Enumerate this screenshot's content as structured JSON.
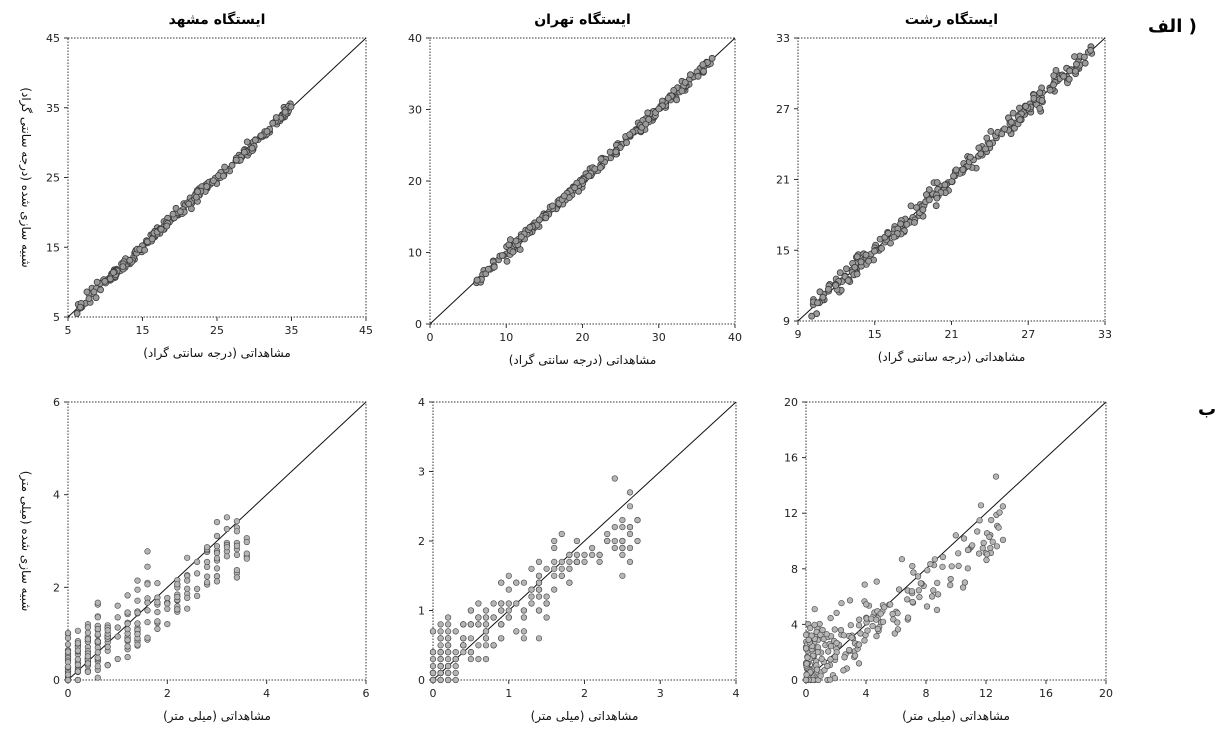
{
  "row_labels": {
    "a": "الف )",
    "b": "ب )"
  },
  "chart_data": [
    {
      "type": "scatter",
      "title": "ایستگاه مشهد",
      "xlabel": "مشاهداتی (درجه سانتی گراد)",
      "ylabel": "شبیه سازی شده (درجه سانتی گراد)",
      "xlim": [
        5,
        45
      ],
      "ylim": [
        5,
        45
      ],
      "xticks": [
        "5",
        "15",
        "25",
        "35",
        "45"
      ],
      "yticks": [
        "5",
        "15",
        "25",
        "35",
        "45"
      ],
      "reference_line": "1:1",
      "x_range_observed": [
        6,
        35
      ]
    },
    {
      "type": "scatter",
      "title": "ایستگاه تهران",
      "xlabel": "مشاهداتی (درجه سانتی گراد)",
      "ylabel": "",
      "xlim": [
        0,
        40
      ],
      "ylim": [
        0,
        40
      ],
      "xticks": [
        "0",
        "10",
        "20",
        "30",
        "40"
      ],
      "yticks": [
        "0",
        "10",
        "20",
        "30",
        "40"
      ],
      "reference_line": "1:1",
      "x_range_observed": [
        6,
        37
      ]
    },
    {
      "type": "scatter",
      "title": "ایستگاه رشت",
      "xlabel": "مشاهداتی (درجه سانتی گراد)",
      "ylabel": "",
      "xlim": [
        9,
        33
      ],
      "ylim": [
        9,
        33
      ],
      "xticks": [
        "9",
        "15",
        "21",
        "27",
        "33"
      ],
      "yticks": [
        "9",
        "15",
        "21",
        "27",
        "33"
      ],
      "reference_line": "1:1",
      "x_range_observed": [
        10,
        32
      ]
    },
    {
      "type": "scatter",
      "title": "",
      "xlabel": "مشاهداتی (میلی متر)",
      "ylabel": "شبیه سازی شده (میلی متر)",
      "xlim": [
        0,
        6
      ],
      "ylim": [
        0,
        6
      ],
      "xticks": [
        "0",
        "2",
        "4",
        "6"
      ],
      "yticks": [
        "0",
        "2",
        "4",
        "6"
      ],
      "reference_line": "1:1",
      "x_range_observed": [
        0,
        3.6
      ]
    },
    {
      "type": "scatter",
      "title": "",
      "xlabel": "مشاهداتی (میلی متر)",
      "ylabel": "",
      "xlim": [
        0,
        4
      ],
      "ylim": [
        0,
        4
      ],
      "xticks": [
        "0",
        "1",
        "2",
        "3",
        "4"
      ],
      "yticks": [
        "0",
        "1",
        "2",
        "3",
        "4"
      ],
      "reference_line": "1:1",
      "x_range_observed": [
        0,
        2.7
      ]
    },
    {
      "type": "scatter",
      "title": "",
      "xlabel": "مشاهداتی (میلی متر)",
      "ylabel": "",
      "xlim": [
        0,
        20
      ],
      "ylim": [
        0,
        20
      ],
      "xticks": [
        "0",
        "4",
        "8",
        "12",
        "16",
        "20"
      ],
      "yticks": [
        "0",
        "4",
        "8",
        "12",
        "16",
        "20"
      ],
      "reference_line": "1:1",
      "x_range_observed": [
        0,
        13.5
      ]
    }
  ]
}
